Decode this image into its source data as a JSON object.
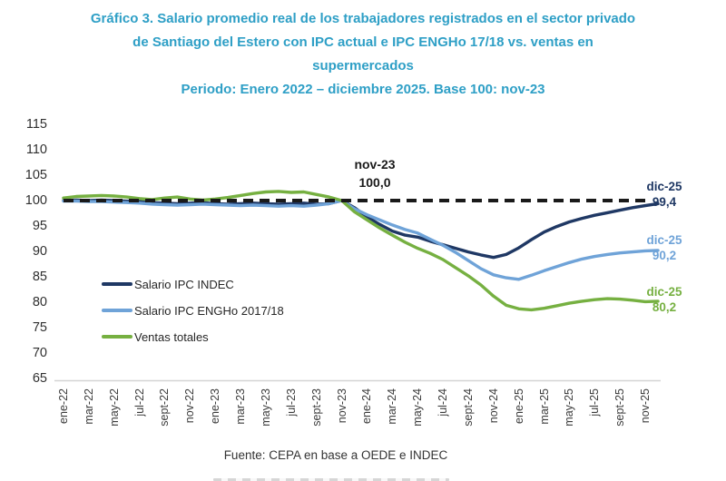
{
  "title": {
    "line1": "Gráfico 3. Salario promedio real de los trabajadores registrados en el sector privado",
    "line2": "de Santiago del Estero con IPC actual e IPC ENGHo 17/18 vs. ventas en",
    "line3": "supermercados",
    "period": "Periodo: Enero 2022 – diciembre 2025. Base 100: nov-23"
  },
  "footer": {
    "source": "Fuente: CEPA en base a OEDE e INDEC"
  },
  "colors": {
    "title_text": "#2E9FC6",
    "navy": "#1F3864",
    "blue": "#6FA3D8",
    "green": "#76B041",
    "baseline_dash": "#1A1A1A",
    "axis_line": "#D4D4D4",
    "tick_text": "#2F2F2F"
  },
  "annotations": {
    "base": {
      "line1": "nov-23",
      "line2": "100,0"
    },
    "navy_end": {
      "line1": "dic-25",
      "line2": "99,4"
    },
    "blue_end": {
      "line1": "dic-25",
      "line2": "90,2"
    },
    "green_end": {
      "line1": "dic-25",
      "line2": "80,2"
    }
  },
  "chart_data": {
    "type": "line",
    "title": "Salario promedio real de los trabajadores registrados en el sector privado de Santiago del Estero con IPC actual e IPC ENGHo 17/18 vs. ventas en supermercados",
    "subtitle": "Periodo: Enero 2022 – diciembre 2025. Base 100: nov-23",
    "ylim": [
      65,
      115
    ],
    "ytick_step": 5,
    "grid": false,
    "legend_position": "inside-left",
    "baseline": {
      "value": 100.0,
      "style": "dashed",
      "label": "nov-23 = 100,0"
    },
    "x": [
      "ene-22",
      "feb-22",
      "mar-22",
      "abr-22",
      "may-22",
      "jun-22",
      "jul-22",
      "ago-22",
      "sept-22",
      "oct-22",
      "nov-22",
      "dic-22",
      "ene-23",
      "feb-23",
      "mar-23",
      "abr-23",
      "may-23",
      "jun-23",
      "jul-23",
      "ago-23",
      "sept-23",
      "oct-23",
      "nov-23",
      "dic-23",
      "ene-24",
      "feb-24",
      "mar-24",
      "abr-24",
      "may-24",
      "jun-24",
      "jul-24",
      "ago-24",
      "sept-24",
      "oct-24",
      "nov-24",
      "dic-24",
      "ene-25",
      "feb-25",
      "mar-25",
      "abr-25",
      "may-25",
      "jun-25",
      "jul-25",
      "ago-25",
      "sept-25",
      "oct-25",
      "nov-25",
      "dic-25"
    ],
    "x_tick_labels": [
      "ene-22",
      "mar-22",
      "may-22",
      "jul-22",
      "sept-22",
      "nov-22",
      "ene-23",
      "mar-23",
      "may-23",
      "jul-23",
      "sept-23",
      "nov-23",
      "ene-24",
      "mar-24",
      "may-24",
      "jul-24",
      "sept-24",
      "nov-24",
      "ene-25",
      "mar-25",
      "may-25",
      "jul-25",
      "sept-25",
      "nov-25"
    ],
    "series": [
      {
        "name": "Salario IPC INDEC",
        "color": "#1F3864",
        "end_label": "dic-25: 99,4",
        "values": [
          100.0,
          100.1,
          100.0,
          100.1,
          100.0,
          99.9,
          99.8,
          99.6,
          99.5,
          99.4,
          99.5,
          99.6,
          99.4,
          99.3,
          99.4,
          99.5,
          99.4,
          99.3,
          99.4,
          99.5,
          99.3,
          99.4,
          100.0,
          98.6,
          96.8,
          95.3,
          94.0,
          93.2,
          92.8,
          92.0,
          91.3,
          90.6,
          89.9,
          89.3,
          88.8,
          89.4,
          90.7,
          92.3,
          93.8,
          94.9,
          95.8,
          96.5,
          97.1,
          97.6,
          98.1,
          98.6,
          99.0,
          99.4
        ]
      },
      {
        "name": "Salario IPC ENGHo 2017/18",
        "color": "#6FA3D8",
        "end_label": "dic-25: 90,2",
        "values": [
          99.9,
          99.9,
          99.8,
          99.8,
          99.7,
          99.6,
          99.5,
          99.3,
          99.2,
          99.1,
          99.2,
          99.3,
          99.2,
          99.1,
          99.0,
          99.1,
          99.0,
          98.9,
          99.0,
          98.9,
          99.1,
          99.4,
          100.0,
          98.4,
          97.2,
          96.2,
          95.2,
          94.3,
          93.6,
          92.4,
          91.2,
          89.8,
          88.2,
          86.6,
          85.4,
          84.8,
          84.5,
          85.3,
          86.2,
          87.0,
          87.8,
          88.5,
          89.0,
          89.4,
          89.7,
          89.9,
          90.1,
          90.2
        ]
      },
      {
        "name": "Ventas totales",
        "color": "#76B041",
        "end_label": "dic-25: 80,2",
        "values": [
          100.5,
          100.8,
          100.9,
          101.0,
          100.9,
          100.7,
          100.4,
          100.2,
          100.5,
          100.7,
          100.3,
          100.1,
          100.3,
          100.6,
          101.0,
          101.4,
          101.7,
          101.8,
          101.6,
          101.7,
          101.2,
          100.7,
          100.0,
          97.8,
          96.2,
          94.6,
          93.2,
          91.8,
          90.6,
          89.6,
          88.4,
          86.8,
          85.2,
          83.4,
          81.2,
          79.4,
          78.7,
          78.5,
          78.8,
          79.3,
          79.8,
          80.2,
          80.5,
          80.7,
          80.6,
          80.4,
          80.1,
          80.2
        ]
      }
    ]
  }
}
